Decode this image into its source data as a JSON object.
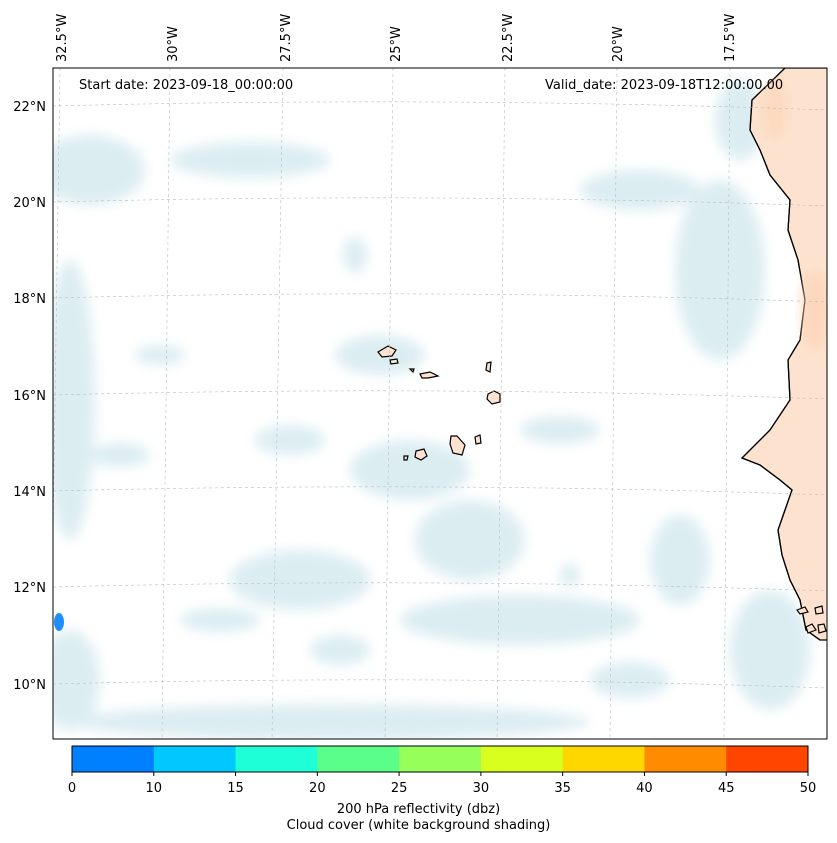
{
  "header": {
    "start_date": "Start date: 2023-09-18_00:00:00",
    "valid_date": "Valid_date: 2023-09-18T12:00:00.00"
  },
  "map": {
    "lon_labels": [
      "32.5°W",
      "30°W",
      "27.5°W",
      "25°W",
      "22.5°W",
      "20°W",
      "17.5°W"
    ],
    "lat_labels": [
      "22°N",
      "20°N",
      "18°N",
      "16°N",
      "14°N",
      "12°N",
      "10°N"
    ],
    "gridlines": "dashed",
    "colors": {
      "cloud": "#d6eaf0",
      "land": "#fde3cf",
      "coast": "#000000",
      "grid": "#bbbbbb"
    }
  },
  "colorbar": {
    "ticks": [
      "0",
      "10",
      "15",
      "20",
      "25",
      "30",
      "35",
      "40",
      "45",
      "50"
    ],
    "colors": [
      "#0080ff",
      "#00c8ff",
      "#1effd8",
      "#5aff8a",
      "#96ff5a",
      "#d8ff1e",
      "#ffd700",
      "#ff8c00",
      "#ff4500"
    ],
    "label_line1": "200 hPa reflectivity (dbz)",
    "label_line2": "Cloud cover (white background shading)"
  }
}
